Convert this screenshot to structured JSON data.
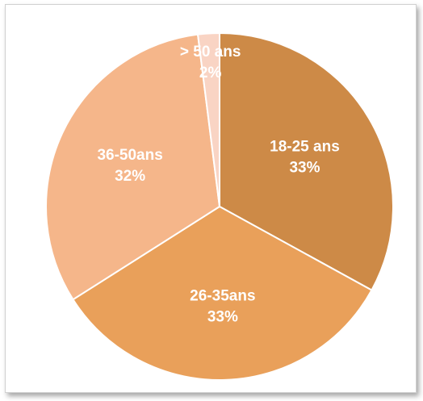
{
  "chart_data": {
    "type": "pie",
    "title": "",
    "slices": [
      {
        "label": "18-25 ans",
        "pct_label": "33%",
        "value": 33,
        "color": "#cd8a47"
      },
      {
        "label": "26-35ans",
        "pct_label": "33%",
        "value": 33,
        "color": "#e9a05a"
      },
      {
        "label": "36-50ans",
        "pct_label": "32%",
        "value": 32,
        "color": "#f5b68a"
      },
      {
        "label": "> 50 ans",
        "pct_label": "2%",
        "value": 2,
        "color": "#f9d4c4"
      }
    ],
    "start_angle_deg": 0,
    "direction": "clockwise",
    "legend": "none"
  }
}
